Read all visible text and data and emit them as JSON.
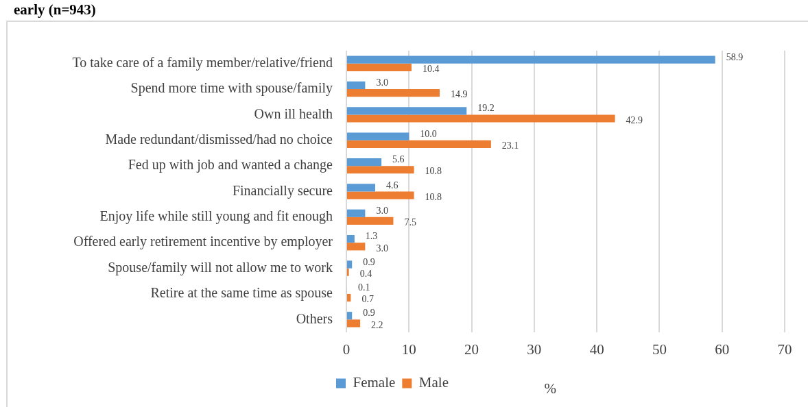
{
  "chart_data": {
    "type": "bar",
    "orientation": "horizontal",
    "title": "early (n=943)",
    "xlabel": "%",
    "categories": [
      "To take care of a family member/relative/friend",
      "Spend more time with spouse/family",
      "Own ill health",
      "Made redundant/dismissed/had no choice",
      "Fed up with job and wanted a change",
      "Financially secure",
      "Enjoy life while still young and fit enough",
      "Offered early retirement incentive by employer",
      "Spouse/family will not allow me to work",
      "Retire at the same time as spouse",
      "Others"
    ],
    "series": [
      {
        "name": "Female",
        "color": "#5b9bd5",
        "values": [
          58.9,
          3.0,
          19.2,
          10.0,
          5.6,
          4.6,
          3.0,
          1.3,
          0.9,
          0.1,
          0.9
        ],
        "value_labels": [
          "58.9",
          "3.0",
          "19.2",
          "10.0",
          "5.6",
          "4.6",
          "3.0",
          "1.3",
          "0.9",
          "0.1",
          "0.9"
        ]
      },
      {
        "name": "Male",
        "color": "#ed7d31",
        "values": [
          10.4,
          14.9,
          42.9,
          23.1,
          10.8,
          10.8,
          7.5,
          3.0,
          0.4,
          0.7,
          2.2
        ],
        "value_labels": [
          "10.4",
          "14.9",
          "42.9",
          "23.1",
          "10.8",
          "10.8",
          "7.5",
          "3.0",
          "0.4",
          "0.7",
          "2.2"
        ]
      }
    ],
    "xlim": [
      0,
      70
    ],
    "xticks": [
      0,
      10,
      20,
      30,
      40,
      50,
      60,
      70
    ],
    "grid": "x",
    "legend": "bottom"
  }
}
